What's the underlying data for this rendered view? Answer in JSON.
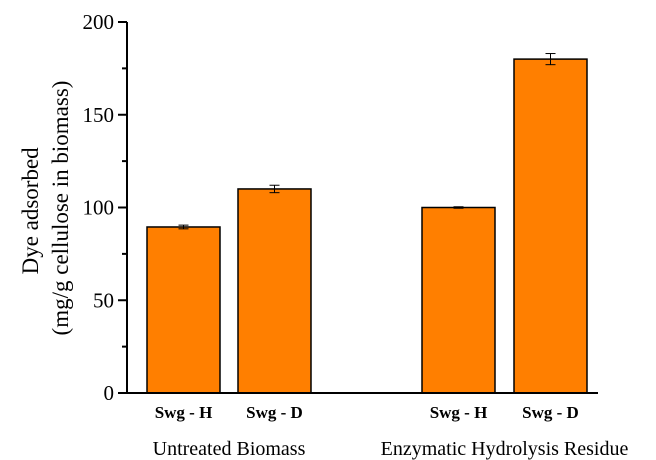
{
  "chart_data": {
    "type": "bar",
    "ylabel_line1": "Dye adsorbed",
    "ylabel_line2": "(mg/g cellulose in biomass)",
    "ylim": [
      0,
      200
    ],
    "yticks": [
      0,
      50,
      100,
      150,
      200
    ],
    "bar_color": "#ff7f00",
    "groups": [
      {
        "label": "Untreated Biomass",
        "bars": [
          {
            "category": "Swg - H",
            "value": 89.5,
            "error": 1.0
          },
          {
            "category": "Swg - D",
            "value": 110,
            "error": 2.0
          }
        ]
      },
      {
        "label": "Enzymatic Hydrolysis Residue",
        "bars": [
          {
            "category": "Swg - H",
            "value": 100,
            "error": 0.4
          },
          {
            "category": "Swg - D",
            "value": 180,
            "error": 3.0
          }
        ]
      }
    ]
  }
}
